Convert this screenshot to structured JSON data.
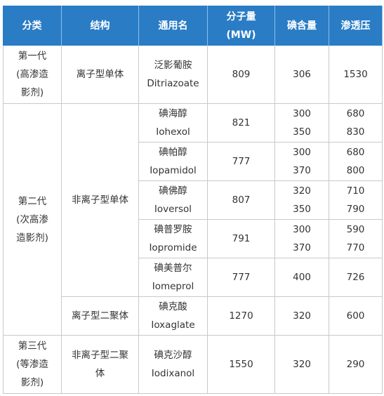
{
  "header": [
    "分类",
    "结构",
    "通用名",
    "分子量",
    "碘含量",
    "渗透压"
  ],
  "header_unit": "(MW)",
  "generations": [
    {
      "lines": [
        "第一代",
        "(高渗造",
        "影剂)"
      ],
      "groups": [
        {
          "structure": [
            "离子型单体"
          ],
          "agents": [
            {
              "cn": "泛影葡胺",
              "en": "Ditriazoate",
              "mw": 809,
              "iodine": [
                306
              ],
              "osmolality": [
                1530
              ]
            }
          ]
        }
      ]
    },
    {
      "lines": [
        "第二代",
        "(次高渗",
        "造影剂)"
      ],
      "groups": [
        {
          "structure": [
            "非离子型单体"
          ],
          "agents": [
            {
              "cn": "碘海醇",
              "en": "Iohexol",
              "mw": 821,
              "iodine": [
                300,
                350
              ],
              "osmolality": [
                680,
                830
              ]
            },
            {
              "cn": "碘帕醇",
              "en": "Iopamidol",
              "mw": 777,
              "iodine": [
                300,
                370
              ],
              "osmolality": [
                680,
                800
              ]
            },
            {
              "cn": "碘佛醇",
              "en": "Ioversol",
              "mw": 807,
              "iodine": [
                320,
                350
              ],
              "osmolality": [
                710,
                790
              ]
            },
            {
              "cn": "碘普罗胺",
              "en": "Iopromide",
              "mw": 791,
              "iodine": [
                300,
                370
              ],
              "osmolality": [
                590,
                770
              ]
            },
            {
              "cn": "碘美普尔",
              "en": "Iomeprol",
              "mw": 777,
              "iodine": [
                400
              ],
              "osmolality": [
                726
              ]
            }
          ]
        },
        {
          "structure": [
            "离子型二聚体"
          ],
          "agents": [
            {
              "cn": "碘克酸",
              "en": "Ioxaglate",
              "mw": 1270,
              "iodine": [
                320
              ],
              "osmolality": [
                600
              ]
            }
          ]
        }
      ]
    },
    {
      "lines": [
        "第三代",
        "(等渗造",
        "影剂)"
      ],
      "groups": [
        {
          "structure": [
            "非离子型二聚",
            "体"
          ],
          "agents": [
            {
              "cn": "碘克沙醇",
              "en": "Iodixanol",
              "mw": 1550,
              "iodine": [
                320
              ],
              "osmolality": [
                290
              ]
            }
          ]
        }
      ]
    }
  ]
}
